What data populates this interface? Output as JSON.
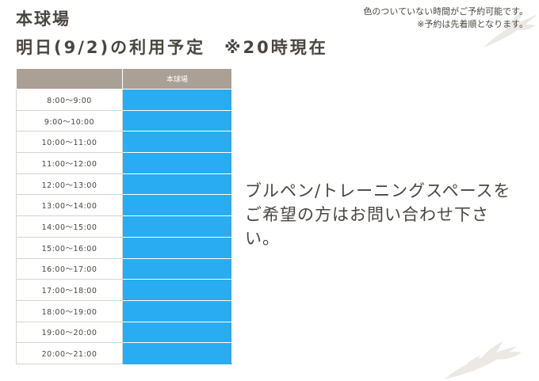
{
  "header": {
    "title_line1": "本球場",
    "title_line2": "明日(9/2)の利用予定　※20時現在"
  },
  "note": {
    "line1": "色のついていない時間がご予約可能です。",
    "line2": "※予約は先着順となります。"
  },
  "table": {
    "column_header": "本球場",
    "rows": [
      {
        "time": "8:00〜9:00",
        "status": "booked"
      },
      {
        "time": "9:00〜10:00",
        "status": "booked"
      },
      {
        "time": "10:00〜11:00",
        "status": "booked"
      },
      {
        "time": "11:00〜12:00",
        "status": "booked"
      },
      {
        "time": "12:00〜13:00",
        "status": "booked"
      },
      {
        "time": "13:00〜14:00",
        "status": "booked"
      },
      {
        "time": "14:00〜15:00",
        "status": "booked"
      },
      {
        "time": "15:00〜16:00",
        "status": "booked"
      },
      {
        "time": "16:00〜17:00",
        "status": "booked"
      },
      {
        "time": "17:00〜18:00",
        "status": "booked"
      },
      {
        "time": "18:00〜19:00",
        "status": "booked"
      },
      {
        "time": "19:00〜20:00",
        "status": "booked"
      },
      {
        "time": "20:00〜21:00",
        "status": "booked"
      }
    ]
  },
  "message": {
    "text": "ブルペン/トレーニングスペースをご希望の方はお問い合わせ下さい。"
  },
  "colors": {
    "header_bg": "#aaa096",
    "booked": "#29acf2",
    "text": "#4a4540"
  }
}
